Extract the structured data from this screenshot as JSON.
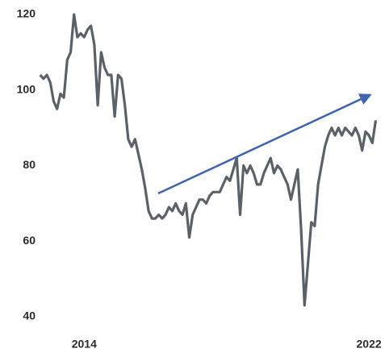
{
  "chart_data": {
    "type": "line",
    "categories": [
      null,
      null,
      null,
      null,
      null,
      null,
      null,
      null,
      null,
      null,
      null,
      null,
      null,
      "2014",
      null,
      null,
      null,
      null,
      null,
      null,
      null,
      null,
      null,
      null,
      null,
      null,
      null,
      null,
      null,
      null,
      null,
      null,
      null,
      null,
      null,
      null,
      null,
      null,
      null,
      null,
      null,
      null,
      null,
      null,
      null,
      null,
      null,
      null,
      null,
      null,
      null,
      null,
      null,
      null,
      null,
      null,
      null,
      null,
      null,
      null,
      null,
      null,
      null,
      null,
      null,
      null,
      null,
      null,
      null,
      null,
      null,
      null,
      null,
      null,
      null,
      null,
      null,
      null,
      null,
      null,
      null,
      null,
      null,
      null,
      null,
      null,
      null,
      null,
      null,
      null,
      null,
      null,
      null,
      null,
      null,
      null,
      null,
      "2022",
      null,
      null
    ],
    "values": [
      104,
      103,
      104,
      102,
      97,
      95,
      99,
      98,
      108,
      110,
      120,
      114,
      115,
      114,
      116,
      117,
      112,
      96,
      110,
      106,
      104,
      104,
      93,
      104,
      103,
      96,
      87,
      85,
      87,
      83,
      79,
      74,
      68,
      66,
      66,
      67,
      66,
      67,
      69,
      68,
      70,
      68,
      67,
      70,
      61,
      67,
      69,
      71,
      71,
      70,
      72,
      73,
      73,
      73,
      75,
      77,
      76,
      79,
      82,
      67,
      80,
      78,
      80,
      78,
      75,
      75,
      78,
      80,
      82,
      78,
      80,
      79,
      77,
      75,
      71,
      75,
      79,
      63,
      43,
      54,
      65,
      64,
      75,
      80,
      85,
      88,
      90,
      88,
      90,
      88,
      90,
      89,
      88,
      90,
      88,
      84,
      89,
      88,
      86,
      92
    ],
    "color": "#5b6168",
    "ylim": [
      40,
      120
    ],
    "yticks": [
      40,
      60,
      80,
      100,
      120
    ],
    "grid": false
  }
}
